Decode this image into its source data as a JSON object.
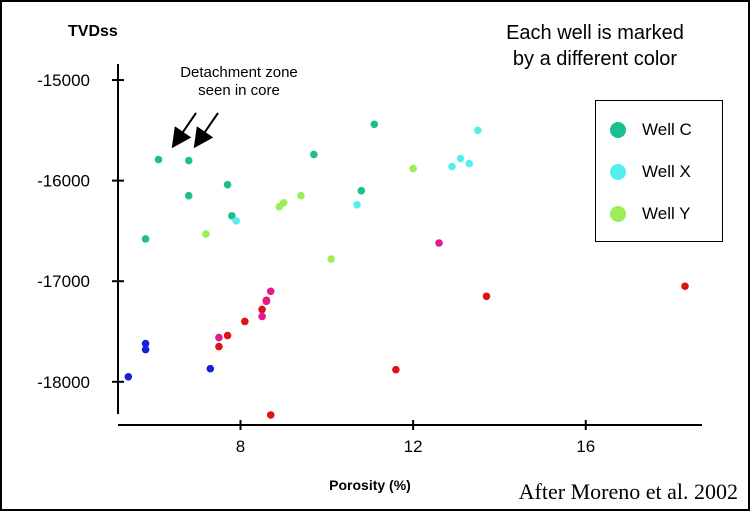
{
  "notes": {
    "color_note_line1": "Each well is marked",
    "color_note_line2": "by a different color",
    "detachment_line1": "Detachment zone",
    "detachment_line2": "seen in core",
    "credit": "After Moreno et al. 2002"
  },
  "legend": [
    {
      "label": "Well C",
      "color": "#1bbf90"
    },
    {
      "label": "Well X",
      "color": "#55eeee"
    },
    {
      "label": "Well Y",
      "color": "#9aee5a"
    }
  ],
  "chart_data": {
    "type": "scatter",
    "xlabel": "Porosity (%)",
    "ylabel": "TVDss",
    "xlim": [
      5.3,
      18.3
    ],
    "ylim": [
      -18350,
      -14920
    ],
    "x_ticks": [
      8,
      12,
      16
    ],
    "y_ticks": [
      -15000,
      -16000,
      -17000,
      -18000
    ],
    "grid": false,
    "legend_position": "right",
    "series": [
      {
        "name": "Well C",
        "color": "#1bbf90",
        "points": [
          [
            6.1,
            -15790
          ],
          [
            6.8,
            -15800
          ],
          [
            5.8,
            -16580
          ],
          [
            6.8,
            -16150
          ],
          [
            7.7,
            -16040
          ],
          [
            7.8,
            -16350
          ],
          [
            9.7,
            -15740
          ],
          [
            10.8,
            -16100
          ],
          [
            11.1,
            -15440
          ]
        ]
      },
      {
        "name": "Well X",
        "color": "#55eeee",
        "points": [
          [
            7.9,
            -16400
          ],
          [
            10.7,
            -16240
          ],
          [
            12.9,
            -15860
          ],
          [
            13.1,
            -15780
          ],
          [
            13.3,
            -15830
          ],
          [
            13.5,
            -15500
          ]
        ]
      },
      {
        "name": "Well Y",
        "color": "#9aee5a",
        "points": [
          [
            7.2,
            -16530
          ],
          [
            8.9,
            -16260
          ],
          [
            9.0,
            -16220
          ],
          [
            9.4,
            -16150
          ],
          [
            10.1,
            -16780
          ],
          [
            12.0,
            -15880
          ]
        ]
      },
      {
        "name": "",
        "color": "#e01218",
        "points": [
          [
            7.5,
            -17650
          ],
          [
            7.7,
            -17540
          ],
          [
            8.1,
            -17400
          ],
          [
            8.5,
            -17280
          ],
          [
            8.6,
            -17190
          ],
          [
            8.7,
            -18330
          ],
          [
            11.6,
            -17880
          ],
          [
            13.7,
            -17150
          ],
          [
            18.3,
            -17050
          ]
        ]
      },
      {
        "name": "",
        "color": "#e8188e",
        "points": [
          [
            7.5,
            -17560
          ],
          [
            8.5,
            -17350
          ],
          [
            8.6,
            -17200
          ],
          [
            8.7,
            -17100
          ],
          [
            12.6,
            -16620
          ]
        ]
      },
      {
        "name": "",
        "color": "#1a20d8",
        "points": [
          [
            5.4,
            -17950
          ],
          [
            5.8,
            -17620
          ],
          [
            5.8,
            -17680
          ],
          [
            7.3,
            -17870
          ]
        ]
      }
    ]
  }
}
